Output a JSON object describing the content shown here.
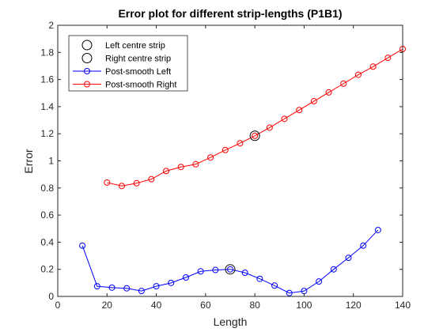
{
  "chart_data": {
    "type": "line",
    "title": "Error plot for different strip-lengths (P1B1)",
    "xlabel": "Length",
    "ylabel": "Error",
    "xlim": [
      0,
      140
    ],
    "ylim": [
      0,
      2
    ],
    "xticks": [
      0,
      20,
      40,
      60,
      80,
      100,
      120,
      140
    ],
    "xtick_labels": [
      "0",
      "20",
      "40",
      "60",
      "80",
      "100",
      "120",
      "140"
    ],
    "yticks": [
      0,
      0.2,
      0.4,
      0.6,
      0.8,
      1,
      1.2,
      1.4,
      1.6,
      1.8,
      2
    ],
    "ytick_labels": [
      "0",
      "0.2",
      "0.4",
      "0.6",
      "0.8",
      "1",
      "1.2",
      "1.4",
      "1.6",
      "1.8",
      "2"
    ],
    "grid": false,
    "legend_position": "top-left",
    "markers": [
      {
        "name": "Left centre strip",
        "x": 70,
        "y": 0.2,
        "color": "#000000"
      },
      {
        "name": "Right centre strip",
        "x": 80,
        "y": 1.185,
        "color": "#000000"
      }
    ],
    "series": [
      {
        "name": "Post-smooth Left",
        "color": "#0000ff",
        "x": [
          10,
          16,
          22,
          28,
          34,
          40,
          46,
          52,
          58,
          64,
          70,
          76,
          82,
          88,
          94,
          100,
          106,
          112,
          118,
          124,
          130
        ],
        "y": [
          0.375,
          0.075,
          0.065,
          0.06,
          0.04,
          0.075,
          0.1,
          0.14,
          0.185,
          0.195,
          0.2,
          0.175,
          0.13,
          0.08,
          0.025,
          0.04,
          0.11,
          0.2,
          0.285,
          0.375,
          0.49
        ]
      },
      {
        "name": "Post-smooth Right",
        "color": "#ff0000",
        "x": [
          20,
          26,
          32,
          38,
          44,
          50,
          56,
          62,
          68,
          74,
          80,
          86,
          92,
          98,
          104,
          110,
          116,
          122,
          128,
          134,
          140
        ],
        "y": [
          0.84,
          0.815,
          0.835,
          0.865,
          0.925,
          0.955,
          0.975,
          1.025,
          1.08,
          1.13,
          1.185,
          1.245,
          1.31,
          1.375,
          1.44,
          1.505,
          1.57,
          1.635,
          1.695,
          1.76,
          1.825
        ]
      }
    ]
  }
}
